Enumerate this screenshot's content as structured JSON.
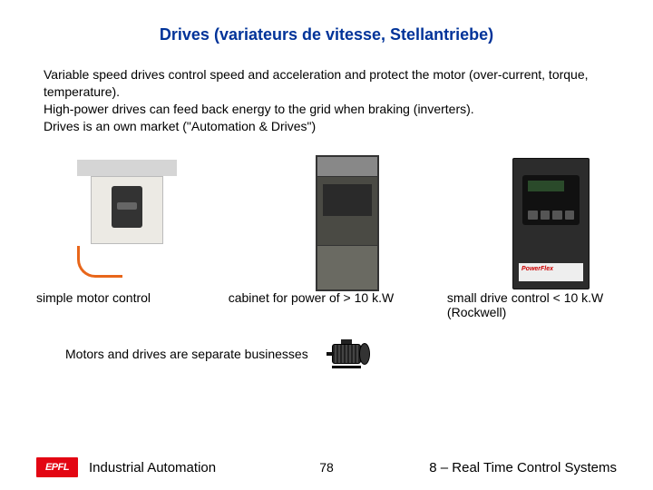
{
  "title": "Drives (variateurs de vitesse, Stellantriebe)",
  "paragraph": "Variable speed drives control speed and acceleration and protect the motor (over-current, torque, temperature).\nHigh-power drives can feed back energy to the grid when braking (inverters).\nDrives is an own market (\"Automation & Drives\")",
  "captions": {
    "c1": "simple motor control",
    "c2": "cabinet for power of > 10 k.W",
    "c3": "small drive control < 10 k.W (Rockwell)"
  },
  "device3_label": "PowerFlex",
  "separate_text": "Motors and drives are separate businesses",
  "footer": {
    "logo_text": "EPFL",
    "title": "Industrial Automation",
    "page": "78",
    "right": "8 – Real Time Control Systems"
  },
  "colors": {
    "title": "#003399",
    "logo_bg": "#e30613",
    "cable": "#e8661a"
  }
}
